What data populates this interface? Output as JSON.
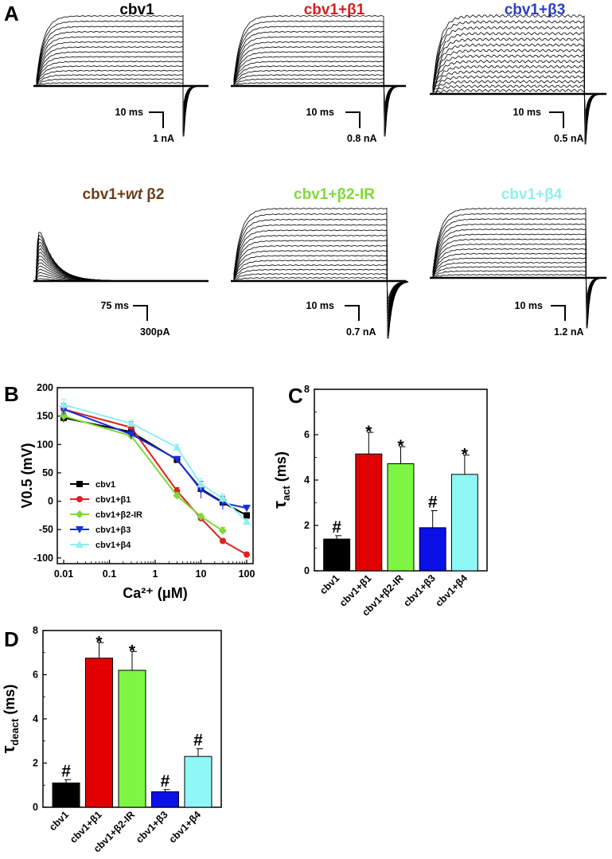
{
  "panel_a": {
    "label": "A",
    "traces": [
      {
        "title_parts": [
          "cbv1"
        ],
        "color": "#000000",
        "time_bar": "10 ms",
        "current_bar": "1 nA",
        "kinetics": "sustained",
        "tail": true
      },
      {
        "title_parts": [
          "cbv1+β1"
        ],
        "color": "#d61f1f",
        "time_bar": "10 ms",
        "current_bar": "0.8 nA",
        "kinetics": "sustained",
        "tail": true
      },
      {
        "title_parts": [
          "cbv1+β3"
        ],
        "color": "#2b3fbf",
        "time_bar": "10 ms",
        "current_bar": "0.5 nA",
        "kinetics": "sustained",
        "tail": true
      },
      {
        "title_parts": [
          "cbv1+",
          "wt",
          " β2"
        ],
        "color": "#6b3e1a",
        "time_bar": "75 ms",
        "current_bar": "300pA",
        "kinetics": "inactivating",
        "tail": false
      },
      {
        "title_parts": [
          "cbv1+β2-IR"
        ],
        "color": "#7ed93a",
        "time_bar": "10 ms",
        "current_bar": "0.7 nA",
        "kinetics": "sustained",
        "tail": true
      },
      {
        "title_parts": [
          "cbv1+β4"
        ],
        "color": "#8ef0ef",
        "time_bar": "10 ms",
        "current_bar": "1.2 nA",
        "kinetics": "sustained",
        "tail": true
      }
    ]
  },
  "chart_data": [
    {
      "panel": "B",
      "type": "line",
      "xscale": "log",
      "xlabel": "Ca²⁺ (μM)",
      "ylabel": "V0.5 (mV)",
      "xlim": [
        0.01,
        100
      ],
      "ylim": [
        -110,
        200
      ],
      "x_ticks": [
        "0.01",
        "0.1",
        "1",
        "10",
        "100"
      ],
      "y_ticks": [
        "200",
        "150",
        "100",
        "50",
        "0",
        "-50",
        "-100"
      ],
      "legend_position": "lower-left",
      "x": [
        0.01,
        0.3,
        3,
        10,
        30,
        100
      ],
      "series": [
        {
          "name": "cbv1",
          "color": "#000000",
          "marker": "square",
          "values": [
            147,
            122,
            73,
            22,
            -2,
            -25
          ],
          "errors": [
            8,
            6,
            5,
            8,
            8,
            4
          ]
        },
        {
          "name": "cbv1+β1",
          "color": "#e02020",
          "marker": "circle",
          "values": [
            162,
            130,
            18,
            -30,
            -70,
            -94
          ],
          "errors": [
            10,
            10,
            6,
            5,
            4,
            4
          ]
        },
        {
          "name": "cbv1+β2-IR",
          "color": "#7ed93a",
          "marker": "diamond",
          "values": [
            150,
            115,
            10,
            -27,
            -52,
            null
          ],
          "errors": [
            8,
            6,
            5,
            5,
            6,
            0
          ]
        },
        {
          "name": "cbv1+β3",
          "color": "#1a2fd6",
          "marker": "triangle-down",
          "values": [
            162,
            118,
            74,
            20,
            -3,
            -12
          ],
          "errors": [
            10,
            8,
            5,
            15,
            12,
            5
          ]
        },
        {
          "name": "cbv1+β4",
          "color": "#8ef0ef",
          "marker": "triangle-up",
          "values": [
            170,
            137,
            95,
            30,
            5,
            -36
          ],
          "errors": [
            10,
            6,
            5,
            10,
            8,
            4
          ]
        }
      ]
    },
    {
      "panel": "C",
      "type": "bar",
      "ylabel_symbol": "τ",
      "ylabel_subscript": "act",
      "ylabel_unit": " (ms)",
      "ylim": [
        0,
        8
      ],
      "y_ticks": [
        "0",
        "2",
        "4",
        "6",
        "8"
      ],
      "categories": [
        "cbv1",
        "cbv1+β1",
        "cbv1+β2-IR",
        "cbv1+β3",
        "cbv1+β4"
      ],
      "values": [
        1.4,
        5.15,
        4.72,
        1.9,
        4.25
      ],
      "errors": [
        0.15,
        0.95,
        0.75,
        0.75,
        0.85
      ],
      "colors": [
        "#000000",
        "#e00000",
        "#7ef542",
        "#0a10e8",
        "#8ff7f5"
      ],
      "markers": [
        "#",
        "*",
        "*",
        "#",
        "*"
      ]
    },
    {
      "panel": "D",
      "type": "bar",
      "ylabel_symbol": "τ",
      "ylabel_subscript": "deact",
      "ylabel_unit": " (ms)",
      "ylim": [
        0,
        8
      ],
      "y_ticks": [
        "0",
        "2",
        "4",
        "6",
        "8"
      ],
      "categories": [
        "cbv1",
        "cbv1+β1",
        "cbv1+β2-IR",
        "cbv1+β3",
        "cbv1+β4"
      ],
      "values": [
        1.1,
        6.75,
        6.2,
        0.7,
        2.3
      ],
      "errors": [
        0.15,
        0.7,
        0.85,
        0.1,
        0.35
      ],
      "colors": [
        "#000000",
        "#e00000",
        "#7ef542",
        "#0a10e8",
        "#8ff7f5"
      ],
      "markers": [
        "#",
        "*",
        "*",
        "#",
        "#"
      ]
    }
  ]
}
